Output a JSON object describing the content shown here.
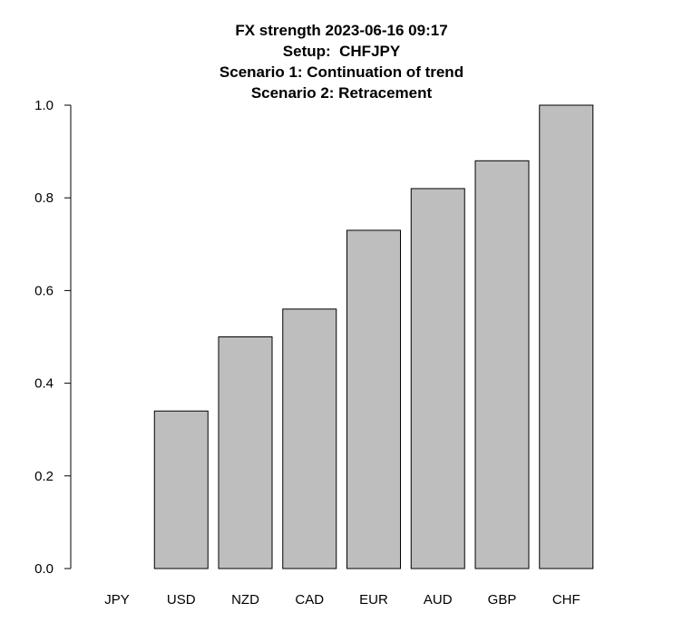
{
  "chart_data": {
    "type": "bar",
    "title": [
      "FX strength 2023-06-16 09:17",
      "Setup:  CHFJPY",
      "Scenario 1: Continuation of trend",
      "Scenario 2: Retracement"
    ],
    "categories": [
      "JPY",
      "USD",
      "NZD",
      "CAD",
      "EUR",
      "AUD",
      "GBP",
      "CHF"
    ],
    "values": [
      0.0,
      0.34,
      0.5,
      0.56,
      0.73,
      0.82,
      0.88,
      1.0
    ],
    "yticks": [
      "0.0",
      "0.2",
      "0.4",
      "0.6",
      "0.8",
      "1.0"
    ],
    "ylim": [
      0,
      1
    ],
    "xlabel": "",
    "ylabel": "",
    "grid": false,
    "bar_color": "#bebebe",
    "bar_border_color": "#000000"
  }
}
